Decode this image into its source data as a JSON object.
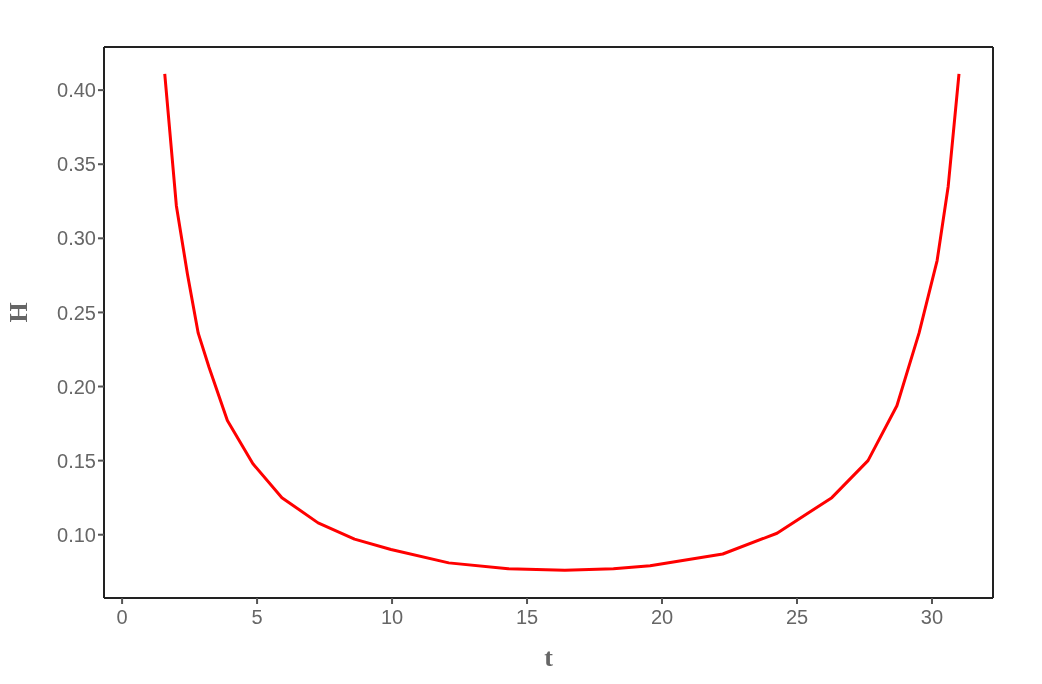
{
  "chart_data": {
    "type": "line",
    "xlabel": "t",
    "ylabel": "H",
    "x": [
      1.58,
      2.01,
      2.42,
      2.82,
      3.22,
      3.9,
      4.84,
      5.92,
      7.26,
      8.61,
      9.96,
      12.1,
      14.3,
      16.4,
      18.2,
      19.56,
      22.25,
      24.26,
      26.29,
      27.63,
      28.7,
      29.52,
      30.19,
      30.6,
      31.0
    ],
    "series": [
      {
        "color": "#ff0000",
        "values": [
          0.411,
          0.322,
          0.276,
          0.236,
          0.213,
          0.177,
          0.148,
          0.125,
          0.108,
          0.097,
          0.09,
          0.081,
          0.077,
          0.076,
          0.077,
          0.079,
          0.087,
          0.101,
          0.125,
          0.15,
          0.187,
          0.236,
          0.285,
          0.335,
          0.411
        ]
      }
    ],
    "xlim": [
      -0.67,
      32.26
    ],
    "xticks": [
      0,
      5,
      10,
      15,
      20,
      25,
      30
    ],
    "ylim": [
      0.0573,
      0.4291
    ],
    "yticks": [
      {
        "value": 0.1,
        "label": "0.10"
      },
      {
        "value": 0.15,
        "label": "0.15"
      },
      {
        "value": 0.2,
        "label": "0.20"
      },
      {
        "value": 0.25,
        "label": "0.25"
      },
      {
        "value": 0.3,
        "label": "0.30"
      },
      {
        "value": 0.35,
        "label": "0.35"
      },
      {
        "value": 0.4,
        "label": "0.40"
      }
    ],
    "grid": false,
    "marker": "none",
    "line_style": "solid"
  }
}
